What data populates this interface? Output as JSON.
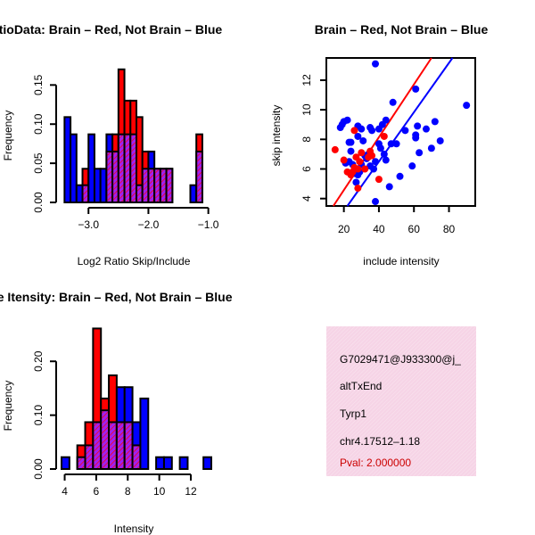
{
  "colors": {
    "red": "#ff0000",
    "blue": "#0000ff",
    "purple": "#a020f0",
    "info_bg": "#f6d4e6",
    "pval": "#cc0000"
  },
  "chart_data": [
    {
      "type": "bar",
      "subtype": "overlaid-histogram",
      "title": "RatioData: Brain – Red, Not Brain – Blue",
      "xlabel": "Log2 Ratio Skip/Include",
      "ylabel": "Frequency",
      "xlim": [
        -3.45,
        -0.95
      ],
      "ylim": [
        0,
        0.18
      ],
      "bin_width": 0.1,
      "bin_start": -3.4,
      "xticks": [
        -3.0,
        -2.0,
        -1.0
      ],
      "xtick_labels": [
        "−3.0",
        "−2.0",
        "−1.0"
      ],
      "yticks": [
        0.0,
        0.05,
        0.1,
        0.15
      ],
      "ytick_labels": [
        "0.00",
        "0.05",
        "0.10",
        "0.15"
      ],
      "series": [
        {
          "name": "Brain",
          "color": "red",
          "values": [
            0,
            0,
            0,
            0.043,
            0,
            0,
            0,
            0.065,
            0.087,
            0.17,
            0.13,
            0.13,
            0.109,
            0.065,
            0.043,
            0.043,
            0.043,
            0.043,
            0,
            0,
            0,
            0,
            0.087
          ]
        },
        {
          "name": "Not Brain",
          "color": "blue",
          "values": [
            0.109,
            0.087,
            0.022,
            0.022,
            0.087,
            0.043,
            0.043,
            0.087,
            0.065,
            0.087,
            0.087,
            0.087,
            0.022,
            0.043,
            0.065,
            0.043,
            0.043,
            0.043,
            0,
            0,
            0,
            0.022,
            0.065
          ]
        }
      ]
    },
    {
      "type": "scatter",
      "title": "Brain – Red, Not Brain – Blue",
      "xlabel": "include intensity",
      "ylabel": "skip intensity",
      "xlim": [
        10,
        95
      ],
      "ylim": [
        3.5,
        13.5
      ],
      "xticks": [
        20,
        40,
        60,
        80
      ],
      "xtick_labels": [
        "20",
        "40",
        "60",
        "80"
      ],
      "yticks": [
        4,
        6,
        8,
        10,
        12
      ],
      "ytick_labels": [
        "4",
        "6",
        "8",
        "10",
        "12"
      ],
      "series": [
        {
          "name": "Not Brain",
          "color": "blue",
          "points": [
            [
              38,
              13.1
            ],
            [
              90,
              10.3
            ],
            [
              20,
              9.2
            ],
            [
              22,
              9.3
            ],
            [
              18,
              8.8
            ],
            [
              19,
              9.0
            ],
            [
              23,
              7.8
            ],
            [
              28,
              8.9
            ],
            [
              30,
              8.7
            ],
            [
              28,
              8.2
            ],
            [
              31,
              7.9
            ],
            [
              35,
              8.8
            ],
            [
              36,
              8.6
            ],
            [
              40,
              8.7
            ],
            [
              42,
              9.0
            ],
            [
              44,
              9.3
            ],
            [
              48,
              10.5
            ],
            [
              61,
              8.3
            ],
            [
              61,
              8.1
            ],
            [
              61,
              11.4
            ],
            [
              62,
              8.9
            ],
            [
              63,
              7.1
            ],
            [
              67,
              8.7
            ],
            [
              70,
              7.4
            ],
            [
              72,
              9.2
            ],
            [
              75,
              7.9
            ],
            [
              55,
              8.6
            ],
            [
              50,
              7.7
            ],
            [
              47,
              7.7
            ],
            [
              41,
              7.4
            ],
            [
              43,
              7.0
            ],
            [
              44,
              6.6
            ],
            [
              38,
              6.5
            ],
            [
              37,
              6.0
            ],
            [
              35,
              6.2
            ],
            [
              33,
              6.7
            ],
            [
              30,
              6.3
            ],
            [
              29,
              5.8
            ],
            [
              28,
              5.6
            ],
            [
              23,
              6.5
            ],
            [
              24,
              7.2
            ],
            [
              25,
              6.3
            ],
            [
              26,
              5.7
            ],
            [
              52,
              5.5
            ],
            [
              46,
              4.8
            ],
            [
              38,
              3.8
            ],
            [
              32,
              6.9
            ],
            [
              21,
              6.4
            ],
            [
              59,
              6.2
            ],
            [
              24,
              7.8
            ],
            [
              27,
              5.1
            ],
            [
              40,
              7.7
            ],
            [
              34,
              7.0
            ]
          ]
        },
        {
          "name": "Brain",
          "color": "red",
          "points": [
            [
              15,
              7.3
            ],
            [
              20,
              6.6
            ],
            [
              22,
              5.8
            ],
            [
              24,
              5.6
            ],
            [
              25,
              5.8
            ],
            [
              26,
              6.1
            ],
            [
              28,
              6.0
            ],
            [
              27,
              6.8
            ],
            [
              29,
              6.5
            ],
            [
              30,
              7.1
            ],
            [
              32,
              6.0
            ],
            [
              34,
              6.8
            ],
            [
              36,
              6.9
            ],
            [
              28,
              4.7
            ],
            [
              40,
              5.3
            ],
            [
              43,
              8.2
            ],
            [
              26,
              8.6
            ],
            [
              35,
              7.2
            ]
          ]
        }
      ],
      "fits": [
        {
          "color": "red",
          "from": [
            14,
            3.5
          ],
          "to": [
            70,
            13.5
          ]
        },
        {
          "color": "blue",
          "from": [
            22,
            3.5
          ],
          "to": [
            82,
            13.5
          ]
        }
      ]
    },
    {
      "type": "bar",
      "subtype": "overlaid-histogram",
      "title": "Gene Itensity: Brain – Red, Not Brain – Blue",
      "xlabel": "Intensity",
      "ylabel": "Frequency",
      "xlim": [
        3.8,
        13.3
      ],
      "ylim": [
        0,
        0.26
      ],
      "bin_width": 0.5,
      "bin_start": 3.8,
      "xticks": [
        4,
        6,
        8,
        10,
        12
      ],
      "xtick_labels": [
        "4",
        "6",
        "8",
        "10",
        "12"
      ],
      "yticks": [
        0.0,
        0.1,
        0.2
      ],
      "ytick_labels": [
        "0.00",
        "0.10",
        "0.20"
      ],
      "series": [
        {
          "name": "Brain",
          "color": "red",
          "values": [
            0,
            0,
            0.044,
            0.087,
            0.261,
            0.131,
            0.174,
            0.087,
            0.087,
            0.044,
            0,
            0,
            0,
            0,
            0,
            0,
            0,
            0,
            0
          ]
        },
        {
          "name": "Not Brain",
          "color": "blue",
          "values": [
            0.022,
            0,
            0.022,
            0.044,
            0.087,
            0.109,
            0.087,
            0.152,
            0.152,
            0.087,
            0.131,
            0,
            0.022,
            0.022,
            0,
            0.022,
            0,
            0,
            0.022
          ]
        }
      ]
    }
  ],
  "info": {
    "id": "G7029471@J933300@j_",
    "event_type": "altTxEnd",
    "gene": "Tyrp1",
    "location": "chr4.17512–1.18",
    "pval": "Pval: 2.000000"
  }
}
